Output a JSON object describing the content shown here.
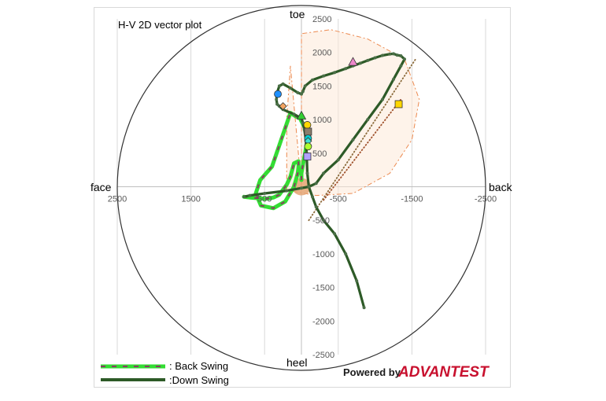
{
  "chart_data": {
    "type": "line",
    "title": "H-V 2D vector plot",
    "xlim": [
      2500,
      -2500
    ],
    "ylim": [
      -2500,
      2500
    ],
    "x_ticks": [
      2500,
      1500,
      500,
      -500,
      -1500,
      -2500
    ],
    "y_ticks": [
      2500,
      2000,
      1500,
      1000,
      500,
      -500,
      -1000,
      -1500,
      -2000,
      -2500
    ],
    "x_tick_labels": [
      "2500",
      "1500",
      "500",
      "-500",
      "-1500",
      "-2500"
    ],
    "y_tick_labels": [
      "2500",
      "2000",
      "1500",
      "1000",
      "500",
      "-500",
      "-1000",
      "-1500",
      "-2000",
      "-2500"
    ],
    "grid": "vertical",
    "direction_labels": {
      "top": "toe",
      "bottom": "heel",
      "left": "face",
      "right": "back"
    },
    "legend_position": "bottom-left",
    "series": [
      {
        "name": ": Back Swing",
        "style": "dashed",
        "color": "#33dd33",
        "dash_color": "#8b3a62",
        "x": [
          0,
          0,
          -20,
          -50,
          -80,
          -60,
          20,
          80,
          150,
          400,
          560,
          620,
          550,
          380,
          220,
          100,
          50,
          40,
          40,
          100,
          150,
          200,
          300,
          360,
          380,
          420,
          500,
          600,
          700,
          780
        ],
        "y": [
          100,
          200,
          330,
          500,
          700,
          850,
          1020,
          1050,
          1100,
          300,
          100,
          -100,
          -280,
          -320,
          -220,
          0,
          200,
          300,
          380,
          350,
          150,
          30,
          -120,
          -150,
          -160,
          -170,
          -180,
          -170,
          -160,
          -150
        ]
      },
      {
        "name": ":Down Swing",
        "style": "solid",
        "color": "#2d5a27",
        "x": [
          780,
          700,
          500,
          200,
          0,
          -100,
          -200,
          -300,
          -500,
          -700,
          -900,
          -1100,
          -1250,
          -1350,
          -1400,
          -1350,
          -1300,
          -1250,
          -1200,
          -1100,
          -1000,
          -900,
          -800,
          -700,
          -600,
          -450,
          -300,
          -150,
          -50,
          -20,
          0,
          50,
          150,
          250,
          300,
          330,
          340,
          330,
          300,
          250,
          100,
          0,
          -20,
          -40,
          -60,
          -70,
          -80,
          -100,
          -150,
          -200,
          -300,
          -450,
          -600,
          -750,
          -850
        ],
        "y": [
          -150,
          -130,
          -100,
          -60,
          -20,
          0,
          50,
          200,
          400,
          700,
          1000,
          1300,
          1600,
          1800,
          1900,
          1950,
          1960,
          1980,
          1975,
          1955,
          1920,
          1880,
          1840,
          1800,
          1760,
          1700,
          1650,
          1590,
          1500,
          1420,
          1380,
          1400,
          1470,
          1530,
          1500,
          1400,
          1300,
          1230,
          1200,
          1150,
          1080,
          1020,
          950,
          850,
          700,
          500,
          200,
          0,
          -150,
          -300,
          -500,
          -700,
          -1000,
          -1400,
          -1800
        ]
      }
    ],
    "trend_lines": [
      {
        "color": "#8b6a3a",
        "x": [
          -100,
          -1550
        ],
        "y": [
          -500,
          1900
        ]
      },
      {
        "color": "#a0522d",
        "x": [
          -300,
          -1350
        ],
        "y": [
          -200,
          1300
        ]
      }
    ],
    "markers": [
      {
        "shape": "triangle",
        "color": "#ee88cc",
        "x": -700,
        "y": 1860
      },
      {
        "shape": "square",
        "color": "#ffd700",
        "x": -1320,
        "y": 1230
      },
      {
        "shape": "circle",
        "color": "#1e90ff",
        "x": 320,
        "y": 1380
      },
      {
        "shape": "diamond",
        "color": "#f4a460",
        "x": 250,
        "y": 1200
      },
      {
        "shape": "triangle",
        "color": "#32cd32",
        "x": 0,
        "y": 1060
      },
      {
        "shape": "circle",
        "color": "#ffd700",
        "x": -80,
        "y": 920
      },
      {
        "shape": "square",
        "color": "#8b7d6b",
        "x": -90,
        "y": 820
      },
      {
        "shape": "circle",
        "color": "#00ced1",
        "x": -90,
        "y": 720
      },
      {
        "shape": "diamond",
        "color": "#40e0d0",
        "x": -90,
        "y": 680
      },
      {
        "shape": "circle",
        "color": "#adff2f",
        "x": -90,
        "y": 600
      },
      {
        "shape": "square",
        "color": "#b0a0ff",
        "x": -80,
        "y": 450
      }
    ],
    "ellipse_reference": {
      "rx": 2550,
      "ry": 2520
    }
  },
  "legend": {
    "back_swing_label": ": Back Swing",
    "down_swing_label": ":Down Swing"
  },
  "branding": {
    "powered_by": "Powered by",
    "company": "ADVANTEST",
    "company_color": "#c8102e"
  }
}
